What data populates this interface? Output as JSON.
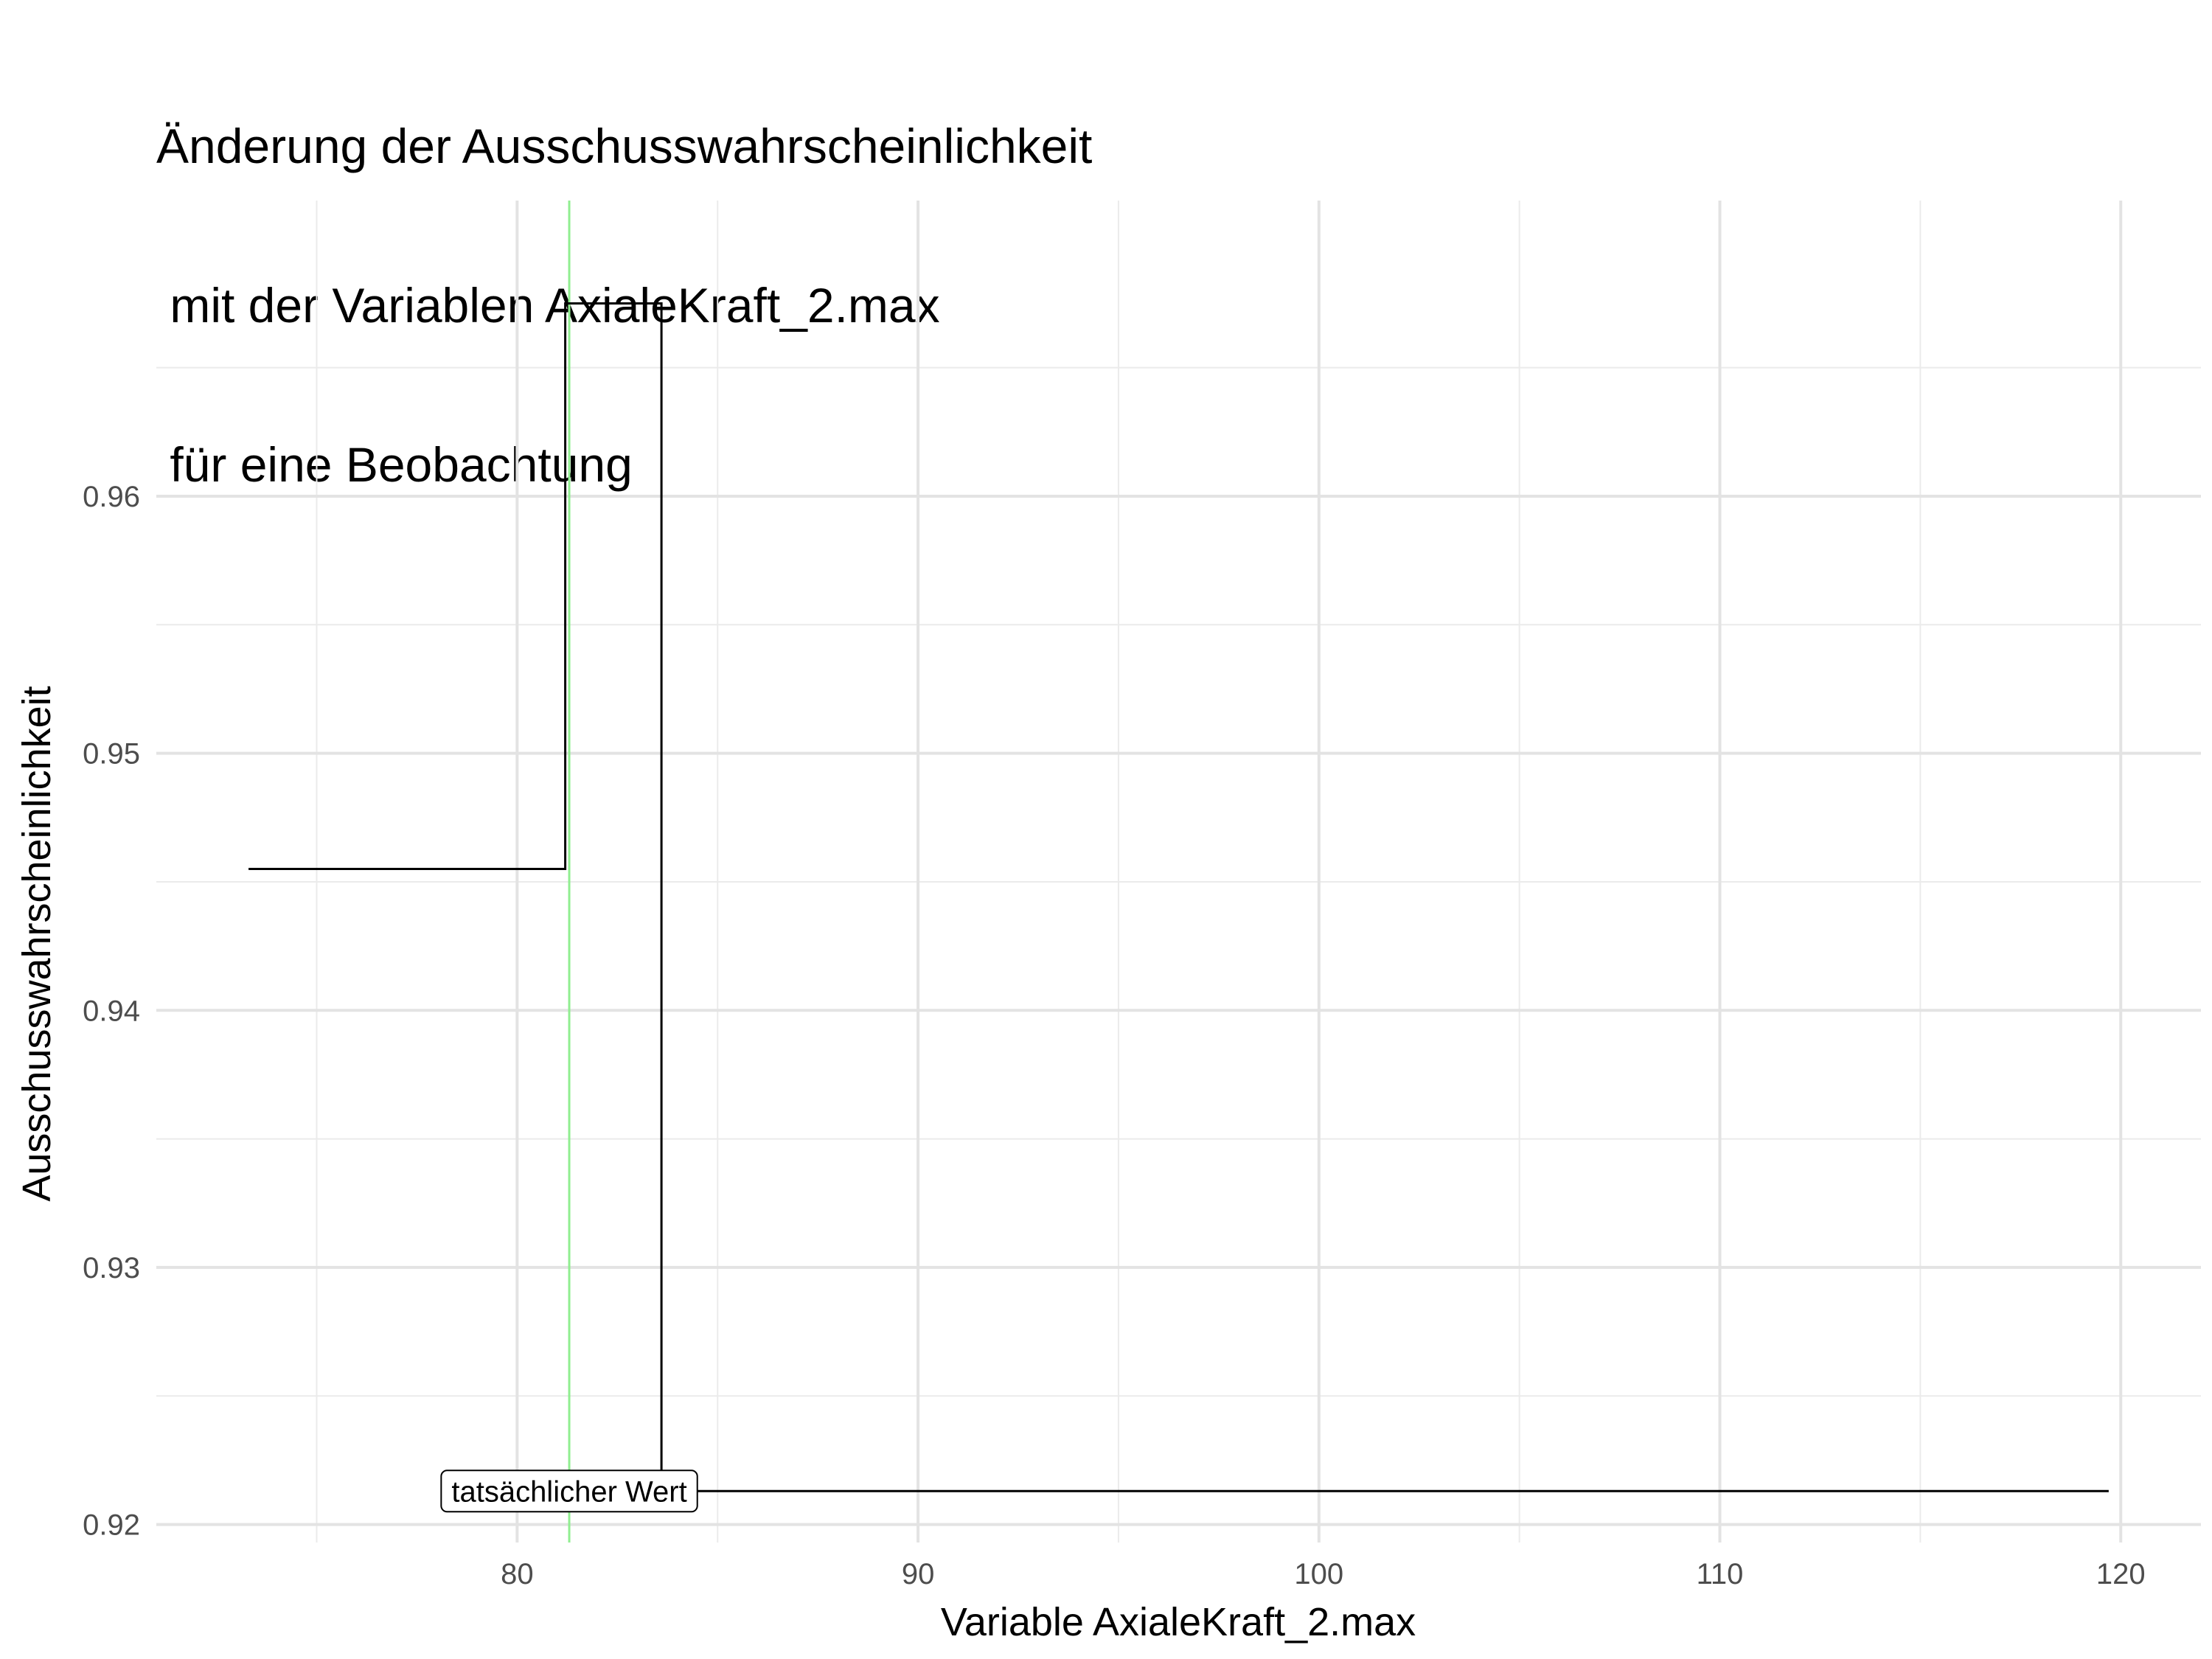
{
  "chart_data": {
    "type": "line",
    "step": true,
    "title_lines": [
      "Änderung der Ausschusswahrscheinlichkeit",
      " mit der Variablen AxialeKraft_2.max",
      " für eine Beobachtung"
    ],
    "xlabel": "Variable AxialeKraft_2.max",
    "ylabel": "Ausschusswahrscheinlichkeit",
    "xlim": [
      71,
      122
    ],
    "ylim": [
      0.9193,
      0.9715
    ],
    "x_ticks": [
      80,
      90,
      100,
      110,
      120
    ],
    "x_tick_labels": [
      "80",
      "90",
      "100",
      "110",
      "120"
    ],
    "y_ticks": [
      0.92,
      0.93,
      0.94,
      0.95,
      0.96
    ],
    "y_tick_labels": [
      "0.92",
      "0.93",
      "0.94",
      "0.95",
      "0.96"
    ],
    "grid": true,
    "series": [
      {
        "color": "#000000",
        "points": [
          [
            73.3,
            0.9455
          ],
          [
            81.2,
            0.9455
          ],
          [
            81.2,
            0.9675
          ],
          [
            83.6,
            0.9675
          ],
          [
            83.6,
            0.9213
          ],
          [
            119.7,
            0.9213
          ]
        ]
      }
    ],
    "reference_line": {
      "x": 81.3,
      "color": "#90ee90"
    },
    "annotation": {
      "text": "tatsächlicher Wert",
      "x": 81.3,
      "y": 0.9213
    }
  }
}
